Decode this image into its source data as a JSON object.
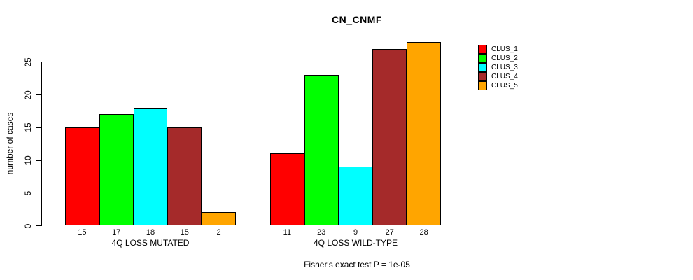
{
  "chart_data": {
    "type": "bar",
    "title": "CN_CNMF",
    "xlabel": "",
    "ylabel": "number of cases",
    "ylim": [
      0,
      28
    ],
    "yticks": [
      0,
      5,
      10,
      15,
      20,
      25
    ],
    "grid": false,
    "legend_position": "right",
    "bar_value_labels": true,
    "categories": [
      "4Q LOSS MUTATED",
      "4Q LOSS WILD-TYPE"
    ],
    "series": [
      {
        "name": "CLUS_1",
        "color": "#FF0000",
        "values": [
          15,
          11
        ]
      },
      {
        "name": "CLUS_2",
        "color": "#00FF00",
        "values": [
          17,
          23
        ]
      },
      {
        "name": "CLUS_3",
        "color": "#00FFFF",
        "values": [
          18,
          9
        ]
      },
      {
        "name": "CLUS_4",
        "color": "#A52A2A",
        "values": [
          15,
          27
        ]
      },
      {
        "name": "CLUS_5",
        "color": "#FFA500",
        "values": [
          2,
          28
        ]
      }
    ],
    "annotation": "Fisher's exact test P = 1e-05"
  },
  "legend": {
    "items": [
      {
        "label": "CLUS_1",
        "color": "#FF0000"
      },
      {
        "label": "CLUS_2",
        "color": "#00FF00"
      },
      {
        "label": "CLUS_3",
        "color": "#00FFFF"
      },
      {
        "label": "CLUS_4",
        "color": "#A52A2A"
      },
      {
        "label": "CLUS_5",
        "color": "#FFA500"
      }
    ]
  }
}
